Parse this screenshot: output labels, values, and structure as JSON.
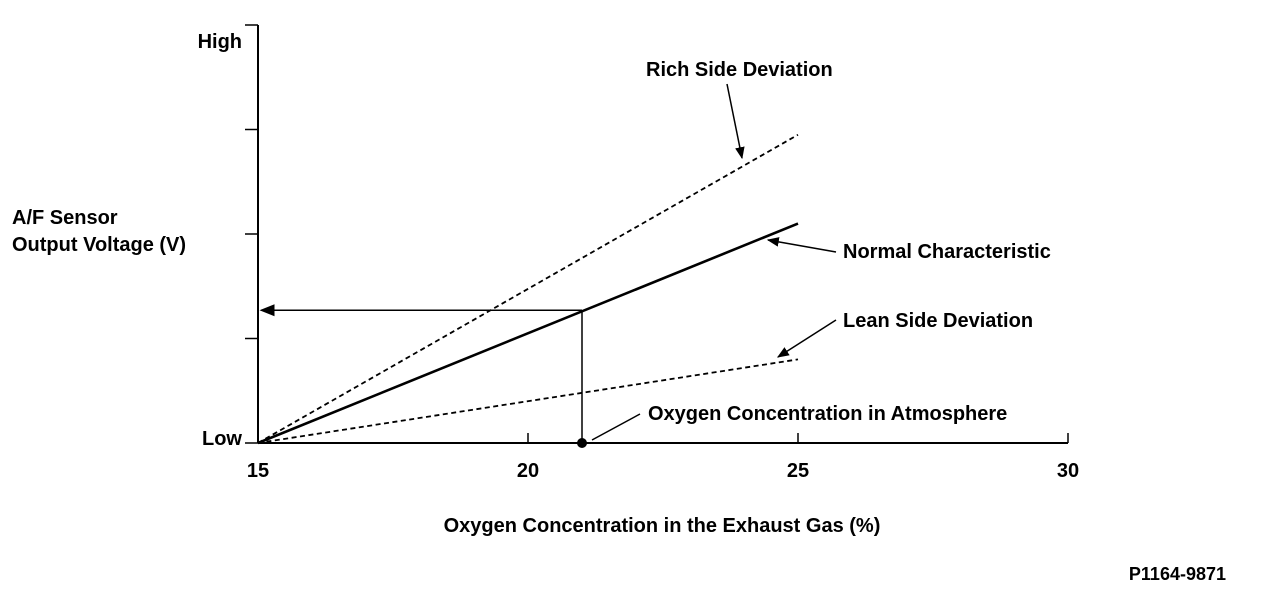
{
  "chart_data": {
    "type": "line",
    "xlabel": "Oxygen Concentration in the Exhaust Gas (%)",
    "ylabel_line1": "A/F Sensor",
    "ylabel_line2": "Output Voltage (V)",
    "xlim": [
      15,
      30
    ],
    "x_ticks": [
      "15",
      "20",
      "25",
      "30"
    ],
    "ylim": [
      0,
      4
    ],
    "y_tick_labels": {
      "high": "High",
      "low": "Low"
    },
    "y_scale": "qualitative (Low to High)",
    "series": [
      {
        "name": "Rich Side Deviation",
        "style": "dashed",
        "x": [
          15,
          25
        ],
        "y": [
          0,
          2.95
        ]
      },
      {
        "name": "Normal Characteristic",
        "style": "solid",
        "x": [
          15,
          25
        ],
        "y": [
          0,
          2.1
        ]
      },
      {
        "name": "Lean Side Deviation",
        "style": "dashed",
        "x": [
          15,
          25
        ],
        "y": [
          0,
          0.8
        ]
      }
    ],
    "reference": {
      "label": "Oxygen Concentration in Atmosphere",
      "x": 21,
      "y_on_normal": 1.27
    },
    "grid": false,
    "legend": "none (direct labels with leader arrows)"
  },
  "figure_id": "P1164-9871"
}
